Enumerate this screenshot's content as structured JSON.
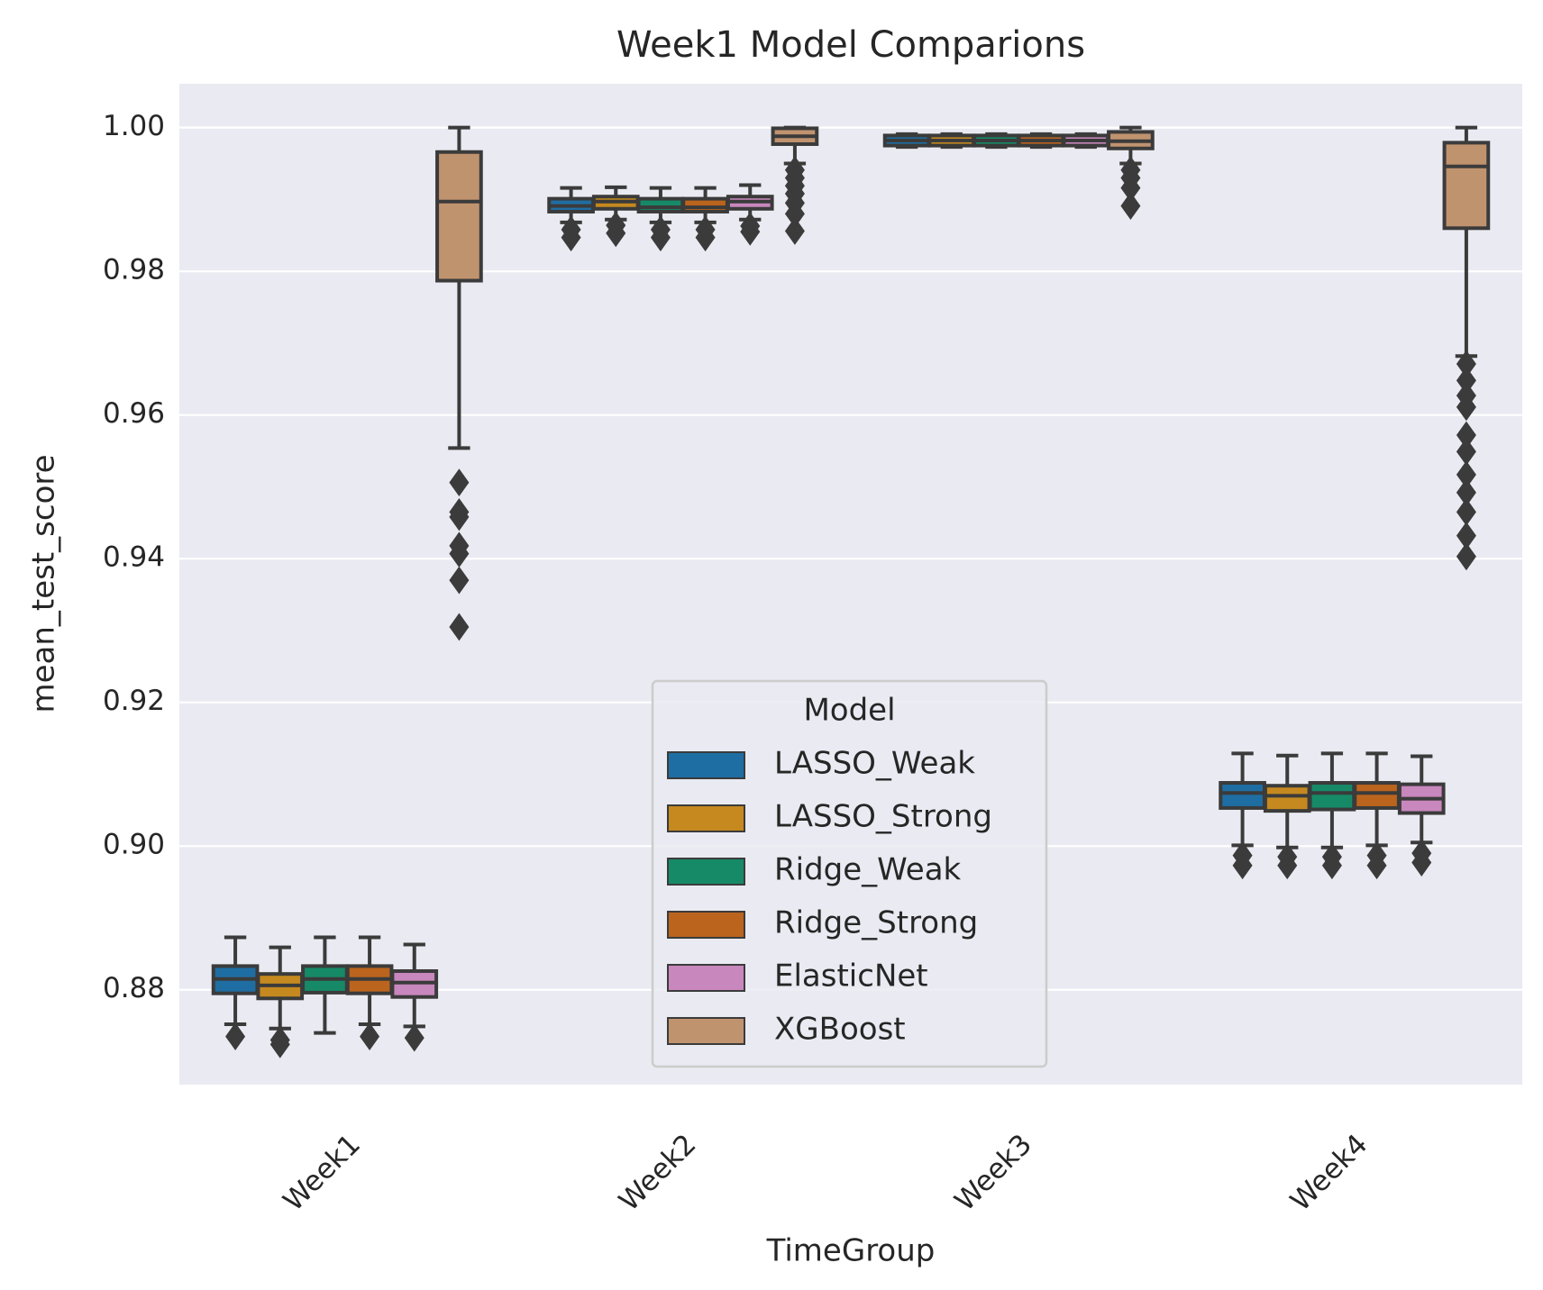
{
  "chart_data": {
    "type": "box",
    "title": "Week1 Model Comparions",
    "x_label": "TimeGroup",
    "y_label": "mean_test_score",
    "legend_title": "Model",
    "legend_position": "lower center",
    "grid": true,
    "categories": [
      "Week1",
      "Week2",
      "Week3",
      "Week4"
    ],
    "ylim": [
      0.8668,
      1.0061
    ],
    "yticks": [
      0.88,
      {
        "value": 0.9,
        "label": "0.90"
      },
      0.92,
      0.94,
      0.96,
      0.98,
      {
        "value": 1,
        "label": "1.00"
      }
    ],
    "series": [
      {
        "name": "LASSO_Weak",
        "color": "#1f6ea3",
        "boxes": [
          {
            "whislo": 0.8752,
            "q1": 0.8795,
            "med": 0.8815,
            "q3": 0.8833,
            "whishi": 0.8873,
            "fliers": [
              0.8735
            ]
          },
          {
            "whislo": 0.9868,
            "q1": 0.9883,
            "med": 0.9891,
            "q3": 0.9901,
            "whishi": 0.9916,
            "fliers": [
              0.9858,
              0.9847
            ]
          },
          {
            "whislo": 0.9973,
            "q1": 0.9975,
            "med": 0.9982,
            "q3": 0.9989,
            "whishi": 0.9991,
            "fliers": []
          },
          {
            "whislo": 0.9001,
            "q1": 0.9053,
            "med": 0.9074,
            "q3": 0.9088,
            "whishi": 0.9129,
            "fliers": [
              0.8987,
              0.8973
            ]
          }
        ]
      },
      {
        "name": "LASSO_Strong",
        "color": "#c5891f",
        "boxes": [
          {
            "whislo": 0.8746,
            "q1": 0.8788,
            "med": 0.8806,
            "q3": 0.8822,
            "whishi": 0.8859,
            "fliers": [
              0.873,
              0.8724
            ]
          },
          {
            "whislo": 0.9872,
            "q1": 0.9887,
            "med": 0.9897,
            "q3": 0.9904,
            "whishi": 0.9917,
            "fliers": [
              0.9864,
              0.9853
            ]
          },
          {
            "whislo": 0.9973,
            "q1": 0.9975,
            "med": 0.9982,
            "q3": 0.9989,
            "whishi": 0.9991,
            "fliers": []
          },
          {
            "whislo": 0.8998,
            "q1": 0.9049,
            "med": 0.907,
            "q3": 0.9084,
            "whishi": 0.9126,
            "fliers": [
              0.8985,
              0.8973
            ]
          }
        ]
      },
      {
        "name": "Ridge_Weak",
        "color": "#168a67",
        "boxes": [
          {
            "whislo": 0.874,
            "q1": 0.8796,
            "med": 0.8815,
            "q3": 0.8833,
            "whishi": 0.8873,
            "fliers": []
          },
          {
            "whislo": 0.9868,
            "q1": 0.9883,
            "med": 0.9889,
            "q3": 0.9901,
            "whishi": 0.9916,
            "fliers": [
              0.9858,
              0.9847
            ]
          },
          {
            "whislo": 0.9973,
            "q1": 0.9975,
            "med": 0.9982,
            "q3": 0.9989,
            "whishi": 0.9991,
            "fliers": []
          },
          {
            "whislo": 0.8998,
            "q1": 0.9051,
            "med": 0.9074,
            "q3": 0.9088,
            "whishi": 0.9129,
            "fliers": [
              0.8985,
              0.8973
            ]
          }
        ]
      },
      {
        "name": "Ridge_Strong",
        "color": "#bb641d",
        "boxes": [
          {
            "whislo": 0.8752,
            "q1": 0.8795,
            "med": 0.8815,
            "q3": 0.8833,
            "whishi": 0.8873,
            "fliers": [
              0.8735
            ]
          },
          {
            "whislo": 0.9868,
            "q1": 0.9883,
            "med": 0.9889,
            "q3": 0.9901,
            "whishi": 0.9916,
            "fliers": [
              0.9858,
              0.9847
            ]
          },
          {
            "whislo": 0.9973,
            "q1": 0.9975,
            "med": 0.9982,
            "q3": 0.9989,
            "whishi": 0.9991,
            "fliers": []
          },
          {
            "whislo": 0.9001,
            "q1": 0.9053,
            "med": 0.9074,
            "q3": 0.9088,
            "whishi": 0.9129,
            "fliers": [
              0.8987,
              0.8973
            ]
          }
        ]
      },
      {
        "name": "ElasticNet",
        "color": "#c887bd",
        "boxes": [
          {
            "whislo": 0.8749,
            "q1": 0.879,
            "med": 0.881,
            "q3": 0.8826,
            "whishi": 0.8863,
            "fliers": [
              0.8733
            ]
          },
          {
            "whislo": 0.9872,
            "q1": 0.9887,
            "med": 0.9897,
            "q3": 0.9904,
            "whishi": 0.992,
            "fliers": [
              0.9863,
              0.9855
            ]
          },
          {
            "whislo": 0.9973,
            "q1": 0.9975,
            "med": 0.9982,
            "q3": 0.9989,
            "whishi": 0.9991,
            "fliers": []
          },
          {
            "whislo": 0.9005,
            "q1": 0.9046,
            "med": 0.9066,
            "q3": 0.9086,
            "whishi": 0.9125,
            "fliers": [
              0.899,
              0.8977
            ]
          }
        ]
      },
      {
        "name": "XGBoost",
        "color": "#c0936f",
        "boxes": [
          {
            "whislo": 0.9554,
            "q1": 0.9787,
            "med": 0.9897,
            "q3": 0.9966,
            "whishi": 1.0,
            "fliers": [
              0.9506,
              0.9465,
              0.9458,
              0.9418,
              0.9407,
              0.937,
              0.9305
            ]
          },
          {
            "whislo": 0.995,
            "q1": 0.9977,
            "med": 0.9988,
            "q3": 0.9999,
            "whishi": 1.0,
            "fliers": [
              0.9941,
              0.993,
              0.9919,
              0.9908,
              0.9895,
              0.988,
              0.9856
            ]
          },
          {
            "whislo": 0.995,
            "q1": 0.9971,
            "med": 0.9981,
            "q3": 0.9994,
            "whishi": 1.0,
            "fliers": [
              0.9941,
              0.993,
              0.9916,
              0.9891
            ]
          },
          {
            "whislo": 0.9682,
            "q1": 0.986,
            "med": 0.9946,
            "q3": 0.9979,
            "whishi": 1.0,
            "fliers": [
              0.9671,
              0.9648,
              0.9627,
              0.9611,
              0.9572,
              0.9549,
              0.9517,
              0.9492,
              0.9465,
              0.9432,
              0.9403
            ]
          }
        ]
      }
    ]
  }
}
